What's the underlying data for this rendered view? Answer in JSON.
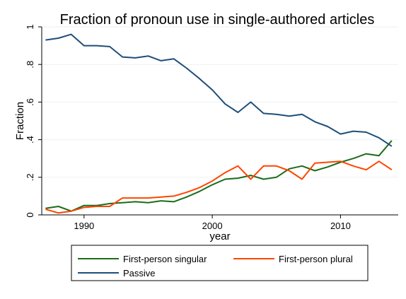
{
  "chart_data": {
    "type": "line",
    "title": "Fraction of pronoun use in single-authored articles",
    "xlabel": "year",
    "ylabel": "Fraction",
    "xlim": [
      1986.7,
      2014.5
    ],
    "ylim": [
      0,
      1
    ],
    "x_ticks": [
      1990,
      2000,
      2010
    ],
    "x_tick_labels": [
      "1990",
      "2000",
      "2010"
    ],
    "y_ticks": [
      0,
      0.2,
      0.4,
      0.6,
      0.8,
      1
    ],
    "y_tick_labels": [
      "0",
      ".2",
      ".4",
      ".6",
      ".8",
      "1"
    ],
    "grid": "horizontal",
    "legend_position": "bottom",
    "x": [
      1987,
      1988,
      1989,
      1990,
      1991,
      1992,
      1993,
      1994,
      1995,
      1996,
      1997,
      1998,
      1999,
      2000,
      2001,
      2002,
      2003,
      2004,
      2005,
      2006,
      2007,
      2008,
      2009,
      2010,
      2011,
      2012,
      2013,
      2014
    ],
    "series": [
      {
        "name": "First-person singular",
        "color": "#1a6d1a",
        "values": [
          0.035,
          0.045,
          0.02,
          0.05,
          0.05,
          0.06,
          0.065,
          0.07,
          0.065,
          0.075,
          0.07,
          0.095,
          0.125,
          0.16,
          0.19,
          0.195,
          0.21,
          0.19,
          0.2,
          0.245,
          0.26,
          0.235,
          0.255,
          0.28,
          0.3,
          0.325,
          0.315,
          0.395
        ]
      },
      {
        "name": "First-person plural",
        "color": "#ff4500",
        "values": [
          0.03,
          0.01,
          0.02,
          0.04,
          0.045,
          0.045,
          0.09,
          0.09,
          0.09,
          0.095,
          0.1,
          0.12,
          0.145,
          0.18,
          0.225,
          0.26,
          0.19,
          0.26,
          0.26,
          0.235,
          0.19,
          0.275,
          0.28,
          0.285,
          0.26,
          0.24,
          0.285,
          0.24
        ]
      },
      {
        "name": "Passive",
        "color": "#1f4e79",
        "values": [
          0.93,
          0.94,
          0.96,
          0.9,
          0.9,
          0.895,
          0.84,
          0.835,
          0.845,
          0.82,
          0.83,
          0.78,
          0.725,
          0.665,
          0.59,
          0.545,
          0.6,
          0.54,
          0.535,
          0.525,
          0.535,
          0.495,
          0.47,
          0.43,
          0.445,
          0.44,
          0.41,
          0.365
        ]
      }
    ]
  }
}
